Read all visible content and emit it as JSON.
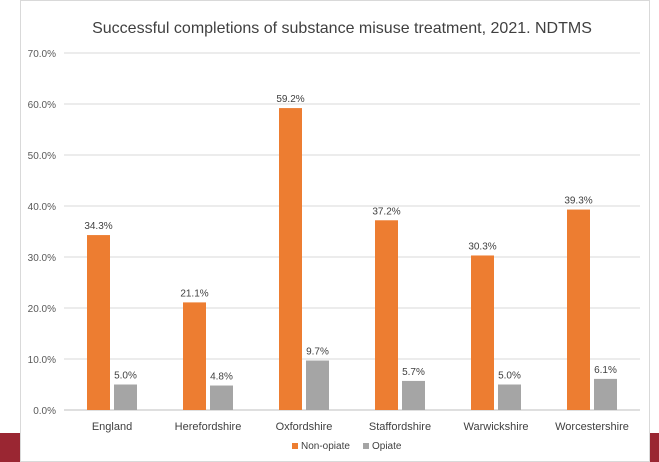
{
  "chart_data": {
    "type": "bar",
    "title": "Successful completions of substance misuse treatment, 2021. NDTMS",
    "categories": [
      "England",
      "Herefordshire",
      "Oxfordshire",
      "Staffordshire",
      "Warwickshire",
      "Worcestershire"
    ],
    "series": [
      {
        "name": "Non-opiate",
        "color": "#ed7d31",
        "values": [
          34.3,
          21.1,
          59.2,
          37.2,
          30.3,
          39.3
        ],
        "labels": [
          "34.3%",
          "21.1%",
          "59.2%",
          "37.2%",
          "30.3%",
          "39.3%"
        ]
      },
      {
        "name": "Opiate",
        "color": "#a5a5a5",
        "values": [
          5.0,
          4.8,
          9.7,
          5.7,
          5.0,
          6.1
        ],
        "labels": [
          "5.0%",
          "4.8%",
          "9.7%",
          "5.7%",
          "5.0%",
          "6.1%"
        ]
      }
    ],
    "ylim": [
      0,
      70
    ],
    "yticks": [
      0,
      10,
      20,
      30,
      40,
      50,
      60,
      70
    ],
    "ytick_labels": [
      "0.0%",
      "10.0%",
      "20.0%",
      "30.0%",
      "40.0%",
      "50.0%",
      "60.0%",
      "70.0%"
    ],
    "grid": true,
    "legend_position": "bottom"
  }
}
